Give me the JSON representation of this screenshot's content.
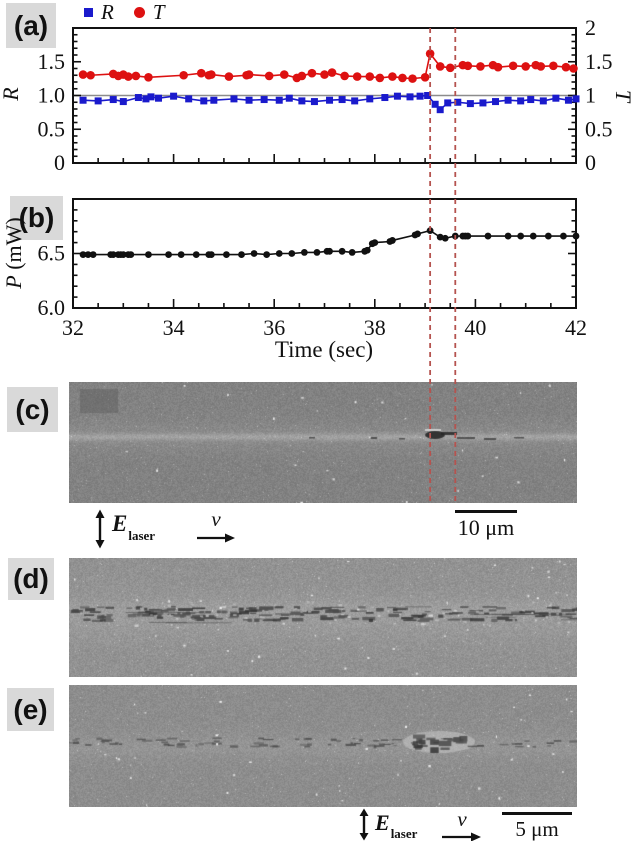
{
  "panel_labels": {
    "a": "(a)",
    "b": "(b)",
    "c": "(c)",
    "d": "(d)",
    "e": "(e)"
  },
  "legend": {
    "series": [
      {
        "label": "R",
        "marker": "square",
        "color": "#1a1acc"
      },
      {
        "label": "T",
        "marker": "circle",
        "color": "#dd1111"
      }
    ]
  },
  "event_markers": {
    "times_sec": [
      39.1,
      39.6
    ],
    "color": "#b5534f",
    "style": "dashed"
  },
  "chart_data": [
    {
      "panel": "a",
      "type": "line",
      "x": {
        "label": "",
        "range": [
          32,
          42
        ],
        "major_tick_step": 2,
        "minor_tick_step": 0.5,
        "show_tick_labels": false
      },
      "y_left": {
        "label": "R",
        "range": [
          0,
          2
        ],
        "minor_step": 0.1,
        "ticks": [
          0,
          0.5,
          1,
          1.5
        ],
        "tick_labels": [
          "0",
          "0.5",
          "1.0",
          "1.5"
        ]
      },
      "y_right": {
        "label": "T",
        "range": [
          0,
          2
        ],
        "minor_step": 0.1,
        "ticks": [
          0,
          0.5,
          1,
          1.5,
          2
        ],
        "tick_labels": [
          "0",
          "0.5",
          "1",
          "1.5",
          "2"
        ]
      },
      "reference_line": {
        "y": 1.0,
        "color": "#8c8c8c"
      },
      "series": [
        {
          "name": "R",
          "marker": "square",
          "color": "#1a1acc",
          "size": 7,
          "x": [
            32.2,
            32.5,
            32.8,
            33.0,
            33.3,
            33.45,
            33.55,
            33.7,
            34.0,
            34.3,
            34.6,
            34.8,
            35.2,
            35.5,
            35.8,
            36.1,
            36.3,
            36.55,
            36.8,
            37.1,
            37.35,
            37.6,
            37.9,
            38.2,
            38.45,
            38.7,
            38.9,
            39.05,
            39.2,
            39.3,
            39.45,
            39.65,
            39.9,
            40.15,
            40.4,
            40.65,
            40.9,
            41.1,
            41.35,
            41.6,
            41.85,
            42.0
          ],
          "y": [
            0.93,
            0.92,
            0.94,
            0.91,
            0.97,
            0.95,
            0.98,
            0.96,
            0.99,
            0.95,
            0.92,
            0.93,
            0.95,
            0.93,
            0.94,
            0.93,
            0.96,
            0.92,
            0.91,
            0.93,
            0.94,
            0.92,
            0.95,
            0.97,
            0.99,
            0.98,
            0.99,
            1.0,
            0.87,
            0.79,
            0.89,
            0.9,
            0.88,
            0.89,
            0.91,
            0.93,
            0.92,
            0.94,
            0.92,
            0.96,
            0.93,
            0.95
          ]
        },
        {
          "name": "T",
          "marker": "circle",
          "color": "#dd1111",
          "size": 4.3,
          "x": [
            32.2,
            32.35,
            32.8,
            32.9,
            33.0,
            33.1,
            33.25,
            33.5,
            34.2,
            34.55,
            34.7,
            34.75,
            35.1,
            35.45,
            35.5,
            35.9,
            36.2,
            36.45,
            36.55,
            36.75,
            37.0,
            37.15,
            37.4,
            37.65,
            37.9,
            38.1,
            38.35,
            38.55,
            38.75,
            39.0,
            39.1,
            39.3,
            39.5,
            39.75,
            39.85,
            40.1,
            40.35,
            40.45,
            40.75,
            41.0,
            41.2,
            41.3,
            41.55,
            41.8,
            41.95
          ],
          "y": [
            1.31,
            1.3,
            1.32,
            1.29,
            1.31,
            1.28,
            1.29,
            1.27,
            1.3,
            1.33,
            1.3,
            1.31,
            1.28,
            1.3,
            1.31,
            1.29,
            1.31,
            1.26,
            1.29,
            1.33,
            1.31,
            1.34,
            1.29,
            1.28,
            1.28,
            1.26,
            1.28,
            1.26,
            1.25,
            1.27,
            1.62,
            1.43,
            1.41,
            1.45,
            1.44,
            1.43,
            1.45,
            1.42,
            1.44,
            1.43,
            1.45,
            1.43,
            1.44,
            1.42,
            1.4
          ]
        }
      ]
    },
    {
      "panel": "b",
      "type": "line",
      "x": {
        "label": "Time (sec)",
        "range": [
          32,
          42
        ],
        "major_tick_step": 2,
        "minor_tick_step": 0.5,
        "show_tick_labels": true,
        "tick_values": [
          32,
          34,
          36,
          38,
          40,
          42
        ],
        "tick_labels": [
          "32",
          "34",
          "36",
          "38",
          "40",
          "42"
        ]
      },
      "y_left": {
        "label": "P (mW)",
        "range": [
          6.0,
          7.0
        ],
        "minor_step": 0.1,
        "ticks": [
          6.0,
          6.5,
          7.0
        ],
        "tick_labels": [
          "6.0",
          "6.5",
          ""
        ]
      },
      "series": [
        {
          "name": "P",
          "marker": "circle",
          "color": "#111111",
          "size": 3.4,
          "x": [
            32.2,
            32.3,
            32.4,
            32.75,
            32.8,
            32.9,
            32.95,
            33.0,
            33.1,
            33.15,
            33.5,
            33.9,
            34.15,
            34.45,
            34.7,
            34.75,
            35.05,
            35.35,
            35.6,
            35.85,
            36.1,
            36.35,
            36.6,
            36.85,
            37.05,
            37.1,
            37.35,
            37.55,
            37.8,
            37.85,
            37.95,
            38.0,
            38.3,
            38.35,
            38.8,
            38.85,
            39.1,
            39.3,
            39.4,
            39.6,
            39.75,
            39.8,
            39.85,
            40.25,
            40.65,
            40.9,
            41.15,
            41.45,
            41.75,
            42.0
          ],
          "y": [
            6.49,
            6.49,
            6.49,
            6.49,
            6.49,
            6.49,
            6.49,
            6.49,
            6.49,
            6.49,
            6.49,
            6.49,
            6.49,
            6.49,
            6.49,
            6.49,
            6.49,
            6.49,
            6.5,
            6.49,
            6.5,
            6.5,
            6.51,
            6.51,
            6.52,
            6.52,
            6.52,
            6.51,
            6.52,
            6.53,
            6.59,
            6.6,
            6.61,
            6.62,
            6.67,
            6.68,
            6.71,
            6.65,
            6.64,
            6.66,
            6.66,
            6.66,
            6.66,
            6.66,
            6.66,
            6.66,
            6.66,
            6.66,
            6.66,
            6.66
          ]
        }
      ]
    }
  ],
  "annotations": {
    "c_row": {
      "polarization_label": "E",
      "polarization_sub": "laser",
      "velocity_label": "v",
      "scale_bar": "10 μm"
    },
    "e_row": {
      "polarization_label": "E",
      "polarization_sub": "laser",
      "velocity_label": "v",
      "scale_bar": "5 μm"
    }
  },
  "icons": {
    "polarization": "up-down-arrow",
    "velocity": "right-arrow"
  }
}
